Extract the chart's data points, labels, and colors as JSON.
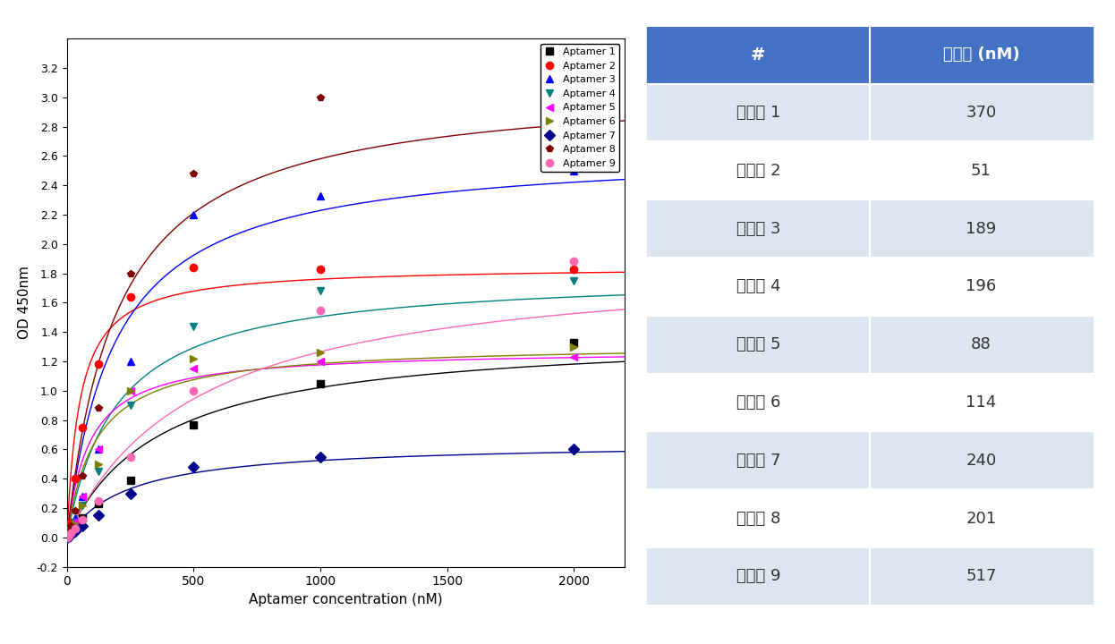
{
  "aptamers": [
    {
      "name": "Aptamer 1",
      "color": "#000000",
      "marker": "s",
      "Kd": 370,
      "Bmax": 1.4,
      "x_data": [
        0,
        7.8,
        15.6,
        31.25,
        62.5,
        125,
        250,
        500,
        1000,
        2000
      ],
      "y_data": [
        0.0,
        0.02,
        0.04,
        0.07,
        0.13,
        0.23,
        0.39,
        0.77,
        1.05,
        1.33
      ]
    },
    {
      "name": "Aptamer 2",
      "color": "#ff0000",
      "marker": "o",
      "Kd": 51,
      "Bmax": 1.85,
      "x_data": [
        0,
        7.8,
        15.6,
        31.25,
        62.5,
        125,
        250,
        500,
        1000,
        2000
      ],
      "y_data": [
        0.0,
        0.04,
        0.1,
        0.4,
        0.75,
        1.18,
        1.64,
        1.84,
        1.83,
        1.83
      ]
    },
    {
      "name": "Aptamer 3",
      "color": "#0000ff",
      "marker": "^",
      "Kd": 189,
      "Bmax": 2.65,
      "x_data": [
        0,
        7.8,
        15.6,
        31.25,
        62.5,
        125,
        250,
        500,
        1000,
        2000
      ],
      "y_data": [
        0.0,
        0.03,
        0.06,
        0.13,
        0.28,
        0.6,
        1.2,
        2.2,
        2.33,
        2.5
      ]
    },
    {
      "name": "Aptamer 4",
      "color": "#008080",
      "marker": "v",
      "Kd": 196,
      "Bmax": 1.8,
      "x_data": [
        0,
        7.8,
        15.6,
        31.25,
        62.5,
        125,
        250,
        500,
        1000,
        2000
      ],
      "y_data": [
        0.0,
        0.02,
        0.05,
        0.1,
        0.22,
        0.45,
        0.9,
        1.44,
        1.68,
        1.75
      ]
    },
    {
      "name": "Aptamer 5",
      "color": "#ff00ff",
      "marker": "<",
      "Kd": 88,
      "Bmax": 1.28,
      "x_data": [
        0,
        7.8,
        15.6,
        31.25,
        62.5,
        125,
        250,
        500,
        1000,
        2000
      ],
      "y_data": [
        0.0,
        0.02,
        0.05,
        0.11,
        0.28,
        0.6,
        1.0,
        1.15,
        1.2,
        1.23
      ]
    },
    {
      "name": "Aptamer 6",
      "color": "#808000",
      "marker": ">",
      "Kd": 114,
      "Bmax": 1.32,
      "x_data": [
        0,
        7.8,
        15.6,
        31.25,
        62.5,
        125,
        250,
        500,
        1000,
        2000
      ],
      "y_data": [
        0.0,
        0.02,
        0.04,
        0.09,
        0.22,
        0.5,
        1.0,
        1.22,
        1.26,
        1.3
      ]
    },
    {
      "name": "Aptamer 7",
      "color": "#00008b",
      "marker": "D",
      "Kd": 240,
      "Bmax": 0.65,
      "x_data": [
        0,
        7.8,
        15.6,
        31.25,
        62.5,
        125,
        250,
        500,
        1000,
        2000
      ],
      "y_data": [
        0.0,
        0.01,
        0.02,
        0.04,
        0.08,
        0.15,
        0.3,
        0.48,
        0.55,
        0.6
      ]
    },
    {
      "name": "Aptamer 8",
      "color": "#800000",
      "marker": "p",
      "Kd": 201,
      "Bmax": 3.1,
      "x_data": [
        0,
        7.8,
        15.6,
        31.25,
        62.5,
        125,
        250,
        500,
        1000,
        2000
      ],
      "y_data": [
        0.0,
        0.04,
        0.08,
        0.18,
        0.42,
        0.88,
        1.8,
        2.48,
        3.0,
        3.02
      ]
    },
    {
      "name": "Aptamer 9",
      "color": "#ff69b4",
      "marker": "o",
      "Kd": 517,
      "Bmax": 1.92,
      "x_data": [
        0,
        7.8,
        15.6,
        31.25,
        62.5,
        125,
        250,
        500,
        1000,
        2000
      ],
      "y_data": [
        0.0,
        0.01,
        0.03,
        0.06,
        0.12,
        0.25,
        0.55,
        1.0,
        1.55,
        1.88
      ]
    }
  ],
  "table_header_color": "#4472c4",
  "table_alt_row_color": "#dce6f1",
  "table_row_color": "#ffffff",
  "table_labels": [
    "앝타머 1",
    "앝타머 2",
    "앝타머 3",
    "앝타머 4",
    "앝타머 5",
    "앝타머 6",
    "앝타머 7",
    "앝타머 8",
    "앝타머 9"
  ],
  "table_values": [
    370,
    51,
    189,
    196,
    88,
    114,
    240,
    201,
    517
  ],
  "col_header_1": "#",
  "col_header_2": "결합력 (nM)",
  "xlabel": "Aptamer concentration (nM)",
  "ylabel": "OD 450nm",
  "ylim": [
    -0.2,
    3.4
  ],
  "xlim": [
    0,
    2200
  ]
}
